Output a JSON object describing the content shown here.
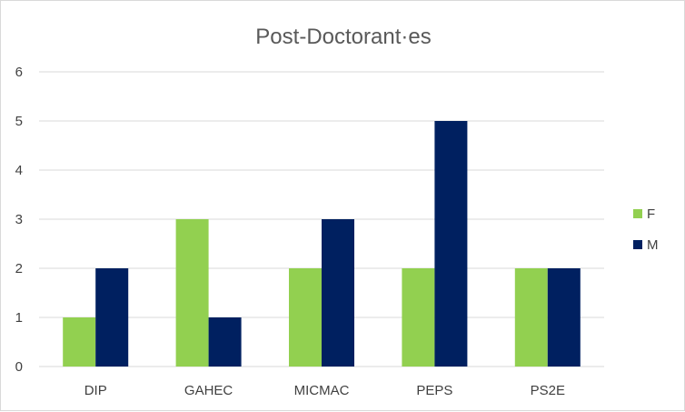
{
  "chart_data": {
    "type": "bar",
    "title": "Post-Doctorant·es",
    "categories": [
      "DIP",
      "GAHEC",
      "MICMAC",
      "PEPS",
      "PS2E"
    ],
    "series": [
      {
        "name": "F",
        "color": "#92d050",
        "values": [
          1,
          3,
          2,
          2,
          2
        ]
      },
      {
        "name": "M",
        "color": "#002060",
        "values": [
          2,
          1,
          3,
          5,
          2
        ]
      }
    ],
    "xlabel": "",
    "ylabel": "",
    "ylim": [
      0,
      6
    ],
    "yticks": [
      0,
      1,
      2,
      3,
      4,
      5,
      6
    ],
    "grid": true,
    "legend_position": "right"
  }
}
